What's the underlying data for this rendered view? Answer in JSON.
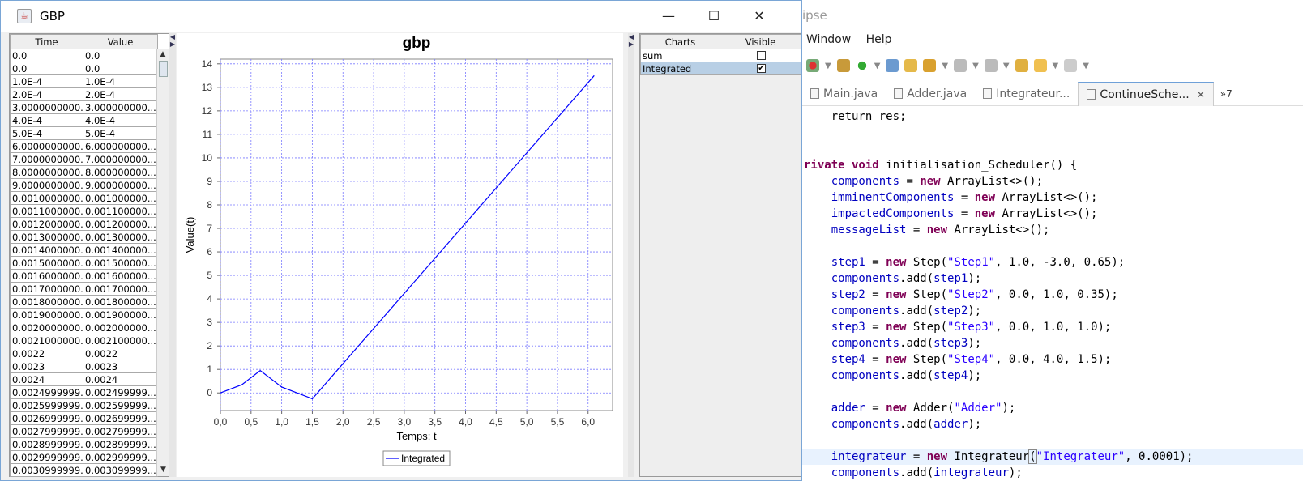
{
  "eclipse": {
    "title_fragment": "ipse",
    "menu": [
      "Window",
      "Help"
    ],
    "tabs": [
      {
        "label": "Main.java",
        "active": false
      },
      {
        "label": "Adder.java",
        "active": false
      },
      {
        "label": "Integrateur...",
        "active": false
      },
      {
        "label": "ContinueSche...",
        "active": true
      }
    ],
    "tab_close": "✕",
    "tabs_overflow": "»7",
    "code_lines": [
      [
        [
          "",
          "    return res;"
        ]
      ],
      [
        [
          "",
          ""
        ]
      ],
      [
        [
          "",
          ""
        ]
      ],
      [
        [
          "kw",
          "rivate void "
        ],
        [
          "",
          "initialisation_Scheduler() {"
        ]
      ],
      [
        [
          "",
          "    "
        ],
        [
          "fd",
          "components"
        ],
        [
          "",
          " = "
        ],
        [
          "kw",
          "new "
        ],
        [
          "",
          "ArrayList<>();"
        ]
      ],
      [
        [
          "",
          "    "
        ],
        [
          "fd",
          "imminentComponents"
        ],
        [
          "",
          " = "
        ],
        [
          "kw",
          "new "
        ],
        [
          "",
          "ArrayList<>();"
        ]
      ],
      [
        [
          "",
          "    "
        ],
        [
          "fd",
          "impactedComponents"
        ],
        [
          "",
          " = "
        ],
        [
          "kw",
          "new "
        ],
        [
          "",
          "ArrayList<>();"
        ]
      ],
      [
        [
          "",
          "    "
        ],
        [
          "fd",
          "messageList"
        ],
        [
          "",
          " = "
        ],
        [
          "kw",
          "new "
        ],
        [
          "",
          "ArrayList<>();"
        ]
      ],
      [
        [
          "",
          ""
        ]
      ],
      [
        [
          "",
          "    "
        ],
        [
          "fd",
          "step1"
        ],
        [
          "",
          " = "
        ],
        [
          "kw",
          "new "
        ],
        [
          "",
          "Step("
        ],
        [
          "st",
          "\"Step1\""
        ],
        [
          "",
          ", 1.0, -3.0, 0.65);"
        ]
      ],
      [
        [
          "",
          "    "
        ],
        [
          "fd",
          "components"
        ],
        [
          "",
          ".add("
        ],
        [
          "fd",
          "step1"
        ],
        [
          "",
          ");"
        ]
      ],
      [
        [
          "",
          "    "
        ],
        [
          "fd",
          "step2"
        ],
        [
          "",
          " = "
        ],
        [
          "kw",
          "new "
        ],
        [
          "",
          "Step("
        ],
        [
          "st",
          "\"Step2\""
        ],
        [
          "",
          ", 0.0, 1.0, 0.35);"
        ]
      ],
      [
        [
          "",
          "    "
        ],
        [
          "fd",
          "components"
        ],
        [
          "",
          ".add("
        ],
        [
          "fd",
          "step2"
        ],
        [
          "",
          ");"
        ]
      ],
      [
        [
          "",
          "    "
        ],
        [
          "fd",
          "step3"
        ],
        [
          "",
          " = "
        ],
        [
          "kw",
          "new "
        ],
        [
          "",
          "Step("
        ],
        [
          "st",
          "\"Step3\""
        ],
        [
          "",
          ", 0.0, 1.0, 1.0);"
        ]
      ],
      [
        [
          "",
          "    "
        ],
        [
          "fd",
          "components"
        ],
        [
          "",
          ".add("
        ],
        [
          "fd",
          "step3"
        ],
        [
          "",
          ");"
        ]
      ],
      [
        [
          "",
          "    "
        ],
        [
          "fd",
          "step4"
        ],
        [
          "",
          " = "
        ],
        [
          "kw",
          "new "
        ],
        [
          "",
          "Step("
        ],
        [
          "st",
          "\"Step4\""
        ],
        [
          "",
          ", 0.0, 4.0, 1.5);"
        ]
      ],
      [
        [
          "",
          "    "
        ],
        [
          "fd",
          "components"
        ],
        [
          "",
          ".add("
        ],
        [
          "fd",
          "step4"
        ],
        [
          "",
          ");"
        ]
      ],
      [
        [
          "",
          ""
        ]
      ],
      [
        [
          "",
          "    "
        ],
        [
          "fd",
          "adder"
        ],
        [
          "",
          " = "
        ],
        [
          "kw",
          "new "
        ],
        [
          "",
          "Adder("
        ],
        [
          "st",
          "\"Adder\""
        ],
        [
          "",
          ");"
        ]
      ],
      [
        [
          "",
          "    "
        ],
        [
          "fd",
          "components"
        ],
        [
          "",
          ".add("
        ],
        [
          "fd",
          "adder"
        ],
        [
          "",
          ");"
        ]
      ],
      [
        [
          "",
          ""
        ]
      ],
      [
        [
          "",
          "    "
        ],
        [
          "fd",
          "integrateur"
        ],
        [
          "",
          " = "
        ],
        [
          "kw",
          "new "
        ],
        [
          "",
          "Integrateur"
        ],
        [
          "brk",
          "("
        ],
        [
          "st",
          "\"Integrateur\""
        ],
        [
          "",
          ", 0.0001);"
        ]
      ],
      [
        [
          "",
          "    "
        ],
        [
          "fd",
          "components"
        ],
        [
          "",
          ".add("
        ],
        [
          "fd",
          "integrateur"
        ],
        [
          "",
          ");"
        ]
      ]
    ],
    "highlight_line": 21
  },
  "window": {
    "title": "GBP",
    "minimize": "—",
    "maximize": "☐",
    "close": "✕"
  },
  "data_table": {
    "headers": [
      "Time",
      "Value"
    ],
    "rows": [
      [
        "0.0",
        "0.0"
      ],
      [
        "0.0",
        "0.0"
      ],
      [
        "1.0E-4",
        "1.0E-4"
      ],
      [
        "2.0E-4",
        "2.0E-4"
      ],
      [
        "3.0000000000...",
        "3.000000000..."
      ],
      [
        "4.0E-4",
        "4.0E-4"
      ],
      [
        "5.0E-4",
        "5.0E-4"
      ],
      [
        "6.0000000000...",
        "6.000000000..."
      ],
      [
        "7.0000000000...",
        "7.000000000..."
      ],
      [
        "8.0000000000...",
        "8.000000000..."
      ],
      [
        "9.0000000000...",
        "9.000000000..."
      ],
      [
        "0.0010000000...",
        "0.001000000..."
      ],
      [
        "0.0011000000...",
        "0.001100000..."
      ],
      [
        "0.0012000000...",
        "0.001200000..."
      ],
      [
        "0.0013000000...",
        "0.001300000..."
      ],
      [
        "0.0014000000...",
        "0.001400000..."
      ],
      [
        "0.0015000000...",
        "0.001500000..."
      ],
      [
        "0.0016000000...",
        "0.001600000..."
      ],
      [
        "0.0017000000...",
        "0.001700000..."
      ],
      [
        "0.0018000000...",
        "0.001800000..."
      ],
      [
        "0.0019000000...",
        "0.001900000..."
      ],
      [
        "0.0020000000...",
        "0.002000000..."
      ],
      [
        "0.0021000000...",
        "0.002100000..."
      ],
      [
        "0.0022",
        "0.0022"
      ],
      [
        "0.0023",
        "0.0023"
      ],
      [
        "0.0024",
        "0.0024"
      ],
      [
        "0.0024999999...",
        "0.002499999..."
      ],
      [
        "0.0025999999...",
        "0.002599999..."
      ],
      [
        "0.0026999999...",
        "0.002699999..."
      ],
      [
        "0.0027999999...",
        "0.002799999..."
      ],
      [
        "0.0028999999...",
        "0.002899999..."
      ],
      [
        "0.0029999999...",
        "0.002999999..."
      ],
      [
        "0.0030999999...",
        "0.003099999..."
      ]
    ]
  },
  "charts_table": {
    "headers": [
      "Charts",
      "Visible"
    ],
    "rows": [
      {
        "name": "sum",
        "visible": false,
        "selected": false
      },
      {
        "name": "Integrated",
        "visible": true,
        "selected": true
      }
    ]
  },
  "chart_data": {
    "type": "line",
    "title": "gbp",
    "xlabel": "Temps: t",
    "ylabel": "Value(t)",
    "xlim": [
      0,
      6.4
    ],
    "ylim": [
      -0.75,
      14.2
    ],
    "x_ticks": [
      "0,0",
      "0,5",
      "1,0",
      "1,5",
      "2,0",
      "2,5",
      "3,0",
      "3,5",
      "4,0",
      "4,5",
      "5,0",
      "5,5",
      "6,0"
    ],
    "y_ticks": [
      "0",
      "1",
      "2",
      "3",
      "4",
      "5",
      "6",
      "7",
      "8",
      "9",
      "10",
      "11",
      "12",
      "13",
      "14"
    ],
    "grid": true,
    "legend": "bottom-center",
    "color": "#0000ff",
    "series": [
      {
        "name": "Integrated",
        "x": [
          0,
          0.35,
          0.65,
          1.0,
          1.5,
          6.1
        ],
        "y": [
          0,
          0.35,
          0.95,
          0.25,
          -0.25,
          13.5
        ]
      }
    ]
  }
}
